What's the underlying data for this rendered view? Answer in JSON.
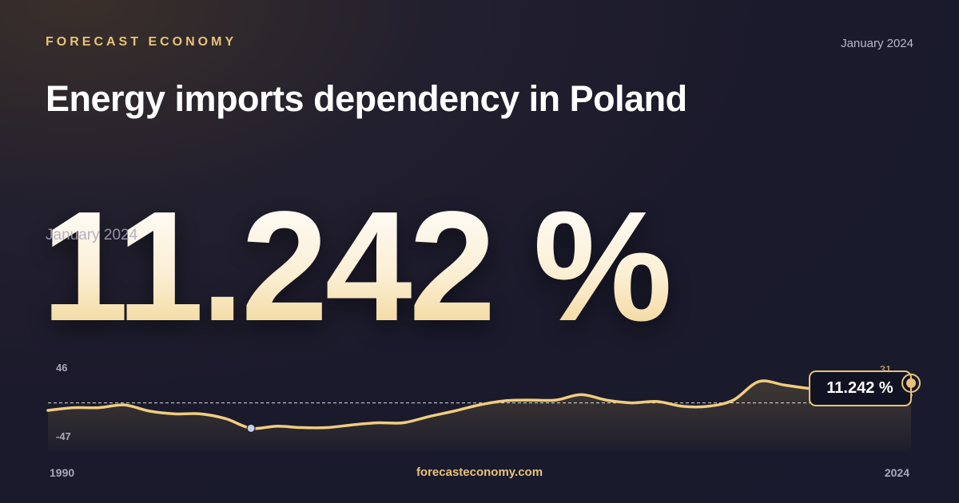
{
  "header": {
    "brand": "FORECAST ECONOMY",
    "date": "January 2024",
    "title": "Energy imports dependency in Poland"
  },
  "headline": {
    "value": "11.242 %",
    "date": "January 2024"
  },
  "footer": {
    "url": "forecasteconomy.com"
  },
  "colors": {
    "accent": "#e8c27a",
    "line": "#f0cd7e",
    "background": "#1b1a2c",
    "muted": "#a9a7bd",
    "min_marker": "#c8cde6"
  },
  "chart_data": {
    "type": "area",
    "ylim": [
      -47,
      46
    ],
    "ytick_labels": [
      "46",
      "-47"
    ],
    "xtick_labels": [
      "1990",
      "2024"
    ],
    "zero_line": true,
    "peak_annotation": "31",
    "last_value_label": "11.242 %",
    "x": [
      1990,
      1991,
      1992,
      1993,
      1994,
      1995,
      1996,
      1997,
      1998,
      1999,
      2000,
      2001,
      2002,
      2003,
      2004,
      2005,
      2006,
      2007,
      2008,
      2009,
      2010,
      2011,
      2012,
      2013,
      2014,
      2015,
      2016,
      2017,
      2018,
      2019,
      2020,
      2021,
      2022,
      2023,
      2024
    ],
    "values": [
      -11,
      -7,
      -7,
      -3,
      -12,
      -16,
      -16,
      -23,
      -37,
      -34,
      -36,
      -36,
      -32,
      -29,
      -29,
      -20,
      -12,
      -3,
      3,
      4,
      4,
      12,
      4,
      0,
      2,
      -5,
      -5,
      4,
      31,
      26,
      21,
      19,
      16,
      13,
      11.242
    ]
  }
}
